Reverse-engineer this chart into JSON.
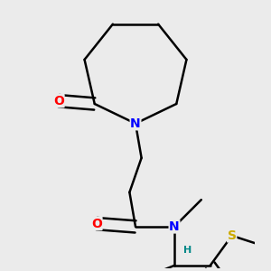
{
  "background_color": "#ebebeb",
  "atom_colors": {
    "C": "#000000",
    "N": "#0000ff",
    "O": "#ff0000",
    "S": "#ccaa00",
    "H": "#008888"
  },
  "bond_color": "#000000",
  "bond_width": 1.8,
  "font_size_atoms": 10,
  "font_size_h": 8,
  "font_size_me": 9
}
